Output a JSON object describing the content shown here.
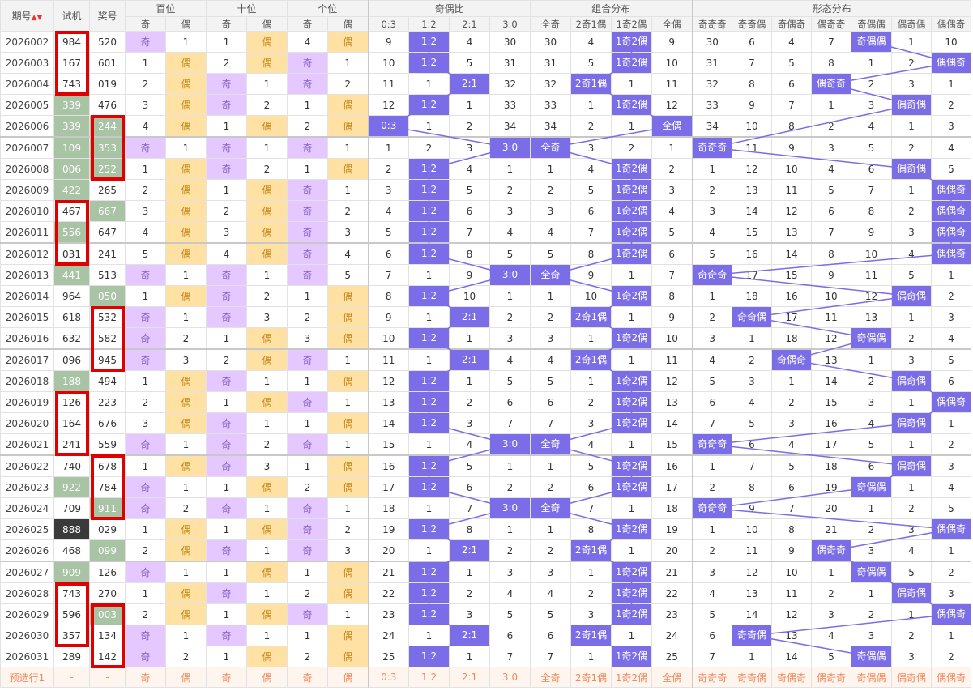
{
  "header": {
    "issue": "期号",
    "sort_icon": "sort-icon",
    "trial": "试机",
    "prize": "奖号",
    "groups": [
      "百位",
      "十位",
      "个位",
      "奇偶比",
      "组合分布",
      "形态分布"
    ],
    "sub_bai": [
      "奇",
      "偶"
    ],
    "sub_shi": [
      "奇",
      "偶"
    ],
    "sub_ge": [
      "奇",
      "偶"
    ],
    "sub_ratio": [
      "0:3",
      "1:2",
      "2:1",
      "3:0"
    ],
    "sub_combo": [
      "全奇",
      "2奇1偶",
      "1奇2偶",
      "全偶"
    ],
    "sub_shape": [
      "奇奇奇",
      "奇奇偶",
      "奇偶奇",
      "偶奇奇",
      "奇偶偶",
      "偶奇偶",
      "偶偶奇"
    ]
  },
  "rows": [
    {
      "issue": "2026002",
      "trial": "984",
      "prize": "520",
      "bai": [
        "奇",
        "1"
      ],
      "shi": [
        "1",
        "偶"
      ],
      "ge": [
        "4",
        "偶"
      ],
      "ratio": [
        "9",
        "1:2",
        "4",
        "30"
      ],
      "combo": [
        "30",
        "4",
        "1奇2偶",
        "9"
      ],
      "shape": [
        "30",
        "6",
        "4",
        "7",
        "奇偶偶",
        "1",
        "10"
      ]
    },
    {
      "issue": "2026003",
      "trial": "167",
      "prize": "601",
      "bai": [
        "1",
        "偶"
      ],
      "shi": [
        "2",
        "偶"
      ],
      "ge": [
        "奇",
        "1"
      ],
      "ratio": [
        "10",
        "1:2",
        "5",
        "31"
      ],
      "combo": [
        "31",
        "5",
        "1奇2偶",
        "10"
      ],
      "shape": [
        "31",
        "7",
        "5",
        "8",
        "1",
        "2",
        "偶偶奇"
      ]
    },
    {
      "issue": "2026004",
      "trial": "743",
      "prize": "019",
      "bai": [
        "2",
        "偶"
      ],
      "shi": [
        "奇",
        "1"
      ],
      "ge": [
        "奇",
        "2"
      ],
      "ratio": [
        "11",
        "1",
        "2:1",
        "32"
      ],
      "combo": [
        "32",
        "2奇1偶",
        "1",
        "11"
      ],
      "shape": [
        "32",
        "8",
        "6",
        "偶奇奇",
        "2",
        "3",
        "1"
      ]
    },
    {
      "issue": "2026005",
      "trial": "339",
      "prize": "476",
      "bai": [
        "3",
        "偶"
      ],
      "shi": [
        "奇",
        "2"
      ],
      "ge": [
        "1",
        "偶"
      ],
      "ratio": [
        "12",
        "1:2",
        "1",
        "33"
      ],
      "combo": [
        "33",
        "1",
        "1奇2偶",
        "12"
      ],
      "shape": [
        "33",
        "9",
        "7",
        "1",
        "3",
        "偶奇偶",
        "2"
      ]
    },
    {
      "issue": "2026006",
      "trial": "339",
      "prize": "244",
      "bai": [
        "4",
        "偶"
      ],
      "shi": [
        "1",
        "偶"
      ],
      "ge": [
        "2",
        "偶"
      ],
      "ratio": [
        "0:3",
        "1",
        "2",
        "34"
      ],
      "combo": [
        "34",
        "2",
        "1",
        "全偶"
      ],
      "shape": [
        "34",
        "10",
        "8",
        "2",
        "4",
        "1",
        "3"
      ]
    },
    {
      "issue": "2026007",
      "trial": "109",
      "prize": "353",
      "bai": [
        "奇",
        "1"
      ],
      "shi": [
        "奇",
        "1"
      ],
      "ge": [
        "奇",
        "1"
      ],
      "ratio": [
        "1",
        "2",
        "3",
        "3:0"
      ],
      "combo": [
        "全奇",
        "3",
        "2",
        "1"
      ],
      "shape": [
        "奇奇奇",
        "11",
        "9",
        "3",
        "5",
        "2",
        "4"
      ]
    },
    {
      "issue": "2026008",
      "trial": "006",
      "prize": "252",
      "bai": [
        "1",
        "偶"
      ],
      "shi": [
        "奇",
        "2"
      ],
      "ge": [
        "1",
        "偶"
      ],
      "ratio": [
        "2",
        "1:2",
        "4",
        "1"
      ],
      "combo": [
        "1",
        "4",
        "1奇2偶",
        "2"
      ],
      "shape": [
        "1",
        "12",
        "10",
        "4",
        "6",
        "偶奇偶",
        "5"
      ]
    },
    {
      "issue": "2026009",
      "trial": "422",
      "prize": "265",
      "bai": [
        "2",
        "偶"
      ],
      "shi": [
        "1",
        "偶"
      ],
      "ge": [
        "奇",
        "1"
      ],
      "ratio": [
        "3",
        "1:2",
        "5",
        "2"
      ],
      "combo": [
        "2",
        "5",
        "1奇2偶",
        "3"
      ],
      "shape": [
        "2",
        "13",
        "11",
        "5",
        "7",
        "1",
        "偶偶奇"
      ]
    },
    {
      "issue": "2026010",
      "trial": "467",
      "prize": "667",
      "bai": [
        "3",
        "偶"
      ],
      "shi": [
        "2",
        "偶"
      ],
      "ge": [
        "奇",
        "2"
      ],
      "ratio": [
        "4",
        "1:2",
        "6",
        "3"
      ],
      "combo": [
        "3",
        "6",
        "1奇2偶",
        "4"
      ],
      "shape": [
        "3",
        "14",
        "12",
        "6",
        "8",
        "2",
        "偶偶奇"
      ]
    },
    {
      "issue": "2026011",
      "trial": "556",
      "prize": "647",
      "bai": [
        "4",
        "偶"
      ],
      "shi": [
        "3",
        "偶"
      ],
      "ge": [
        "奇",
        "3"
      ],
      "ratio": [
        "5",
        "1:2",
        "7",
        "4"
      ],
      "combo": [
        "4",
        "7",
        "1奇2偶",
        "5"
      ],
      "shape": [
        "4",
        "15",
        "13",
        "7",
        "9",
        "3",
        "偶偶奇"
      ]
    },
    {
      "issue": "2026012",
      "trial": "031",
      "prize": "241",
      "bai": [
        "5",
        "偶"
      ],
      "shi": [
        "4",
        "偶"
      ],
      "ge": [
        "奇",
        "4"
      ],
      "ratio": [
        "6",
        "1:2",
        "8",
        "5"
      ],
      "combo": [
        "5",
        "8",
        "1奇2偶",
        "6"
      ],
      "shape": [
        "5",
        "16",
        "14",
        "8",
        "10",
        "4",
        "偶偶奇"
      ]
    },
    {
      "issue": "2026013",
      "trial": "441",
      "prize": "513",
      "bai": [
        "奇",
        "1"
      ],
      "shi": [
        "奇",
        "1"
      ],
      "ge": [
        "奇",
        "5"
      ],
      "ratio": [
        "7",
        "1",
        "9",
        "3:0"
      ],
      "combo": [
        "全奇",
        "9",
        "1",
        "7"
      ],
      "shape": [
        "奇奇奇",
        "17",
        "15",
        "9",
        "11",
        "5",
        "1"
      ]
    },
    {
      "issue": "2026014",
      "trial": "964",
      "prize": "050",
      "bai": [
        "1",
        "偶"
      ],
      "shi": [
        "奇",
        "2"
      ],
      "ge": [
        "1",
        "偶"
      ],
      "ratio": [
        "8",
        "1:2",
        "10",
        "1"
      ],
      "combo": [
        "1",
        "10",
        "1奇2偶",
        "8"
      ],
      "shape": [
        "1",
        "18",
        "16",
        "10",
        "12",
        "偶奇偶",
        "2"
      ]
    },
    {
      "issue": "2026015",
      "trial": "618",
      "prize": "532",
      "bai": [
        "奇",
        "1"
      ],
      "shi": [
        "奇",
        "3"
      ],
      "ge": [
        "2",
        "偶"
      ],
      "ratio": [
        "9",
        "1",
        "2:1",
        "2"
      ],
      "combo": [
        "2",
        "2奇1偶",
        "1",
        "9"
      ],
      "shape": [
        "2",
        "奇奇偶",
        "17",
        "11",
        "13",
        "1",
        "3"
      ]
    },
    {
      "issue": "2026016",
      "trial": "632",
      "prize": "582",
      "bai": [
        "奇",
        "2"
      ],
      "shi": [
        "1",
        "偶"
      ],
      "ge": [
        "3",
        "偶"
      ],
      "ratio": [
        "10",
        "1:2",
        "1",
        "3"
      ],
      "combo": [
        "3",
        "1",
        "1奇2偶",
        "10"
      ],
      "shape": [
        "3",
        "1",
        "18",
        "12",
        "奇偶偶",
        "2",
        "4"
      ]
    },
    {
      "issue": "2026017",
      "trial": "096",
      "prize": "945",
      "bai": [
        "奇",
        "3"
      ],
      "shi": [
        "2",
        "偶"
      ],
      "ge": [
        "奇",
        "1"
      ],
      "ratio": [
        "11",
        "1",
        "2:1",
        "4"
      ],
      "combo": [
        "4",
        "2奇1偶",
        "1",
        "11"
      ],
      "shape": [
        "4",
        "2",
        "奇偶奇",
        "13",
        "1",
        "3",
        "5"
      ]
    },
    {
      "issue": "2026018",
      "trial": "188",
      "prize": "494",
      "bai": [
        "1",
        "偶"
      ],
      "shi": [
        "奇",
        "1"
      ],
      "ge": [
        "1",
        "偶"
      ],
      "ratio": [
        "12",
        "1:2",
        "1",
        "5"
      ],
      "combo": [
        "5",
        "1",
        "1奇2偶",
        "12"
      ],
      "shape": [
        "5",
        "3",
        "1",
        "14",
        "2",
        "偶奇偶",
        "6"
      ]
    },
    {
      "issue": "2026019",
      "trial": "126",
      "prize": "223",
      "bai": [
        "2",
        "偶"
      ],
      "shi": [
        "1",
        "偶"
      ],
      "ge": [
        "奇",
        "1"
      ],
      "ratio": [
        "13",
        "1:2",
        "2",
        "6"
      ],
      "combo": [
        "6",
        "2",
        "1奇2偶",
        "13"
      ],
      "shape": [
        "6",
        "4",
        "2",
        "15",
        "3",
        "1",
        "偶偶奇"
      ]
    },
    {
      "issue": "2026020",
      "trial": "164",
      "prize": "676",
      "bai": [
        "3",
        "偶"
      ],
      "shi": [
        "奇",
        "1"
      ],
      "ge": [
        "1",
        "偶"
      ],
      "ratio": [
        "14",
        "1:2",
        "3",
        "7"
      ],
      "combo": [
        "7",
        "3",
        "1奇2偶",
        "14"
      ],
      "shape": [
        "7",
        "5",
        "3",
        "16",
        "4",
        "偶奇偶",
        "1"
      ]
    },
    {
      "issue": "2026021",
      "trial": "241",
      "prize": "559",
      "bai": [
        "奇",
        "1"
      ],
      "shi": [
        "奇",
        "2"
      ],
      "ge": [
        "奇",
        "1"
      ],
      "ratio": [
        "15",
        "1",
        "4",
        "3:0"
      ],
      "combo": [
        "全奇",
        "4",
        "1",
        "15"
      ],
      "shape": [
        "奇奇奇",
        "6",
        "4",
        "17",
        "5",
        "1",
        "2"
      ]
    },
    {
      "issue": "2026022",
      "trial": "740",
      "prize": "678",
      "bai": [
        "1",
        "偶"
      ],
      "shi": [
        "奇",
        "3"
      ],
      "ge": [
        "1",
        "偶"
      ],
      "ratio": [
        "16",
        "1:2",
        "5",
        "1"
      ],
      "combo": [
        "1",
        "5",
        "1奇2偶",
        "16"
      ],
      "shape": [
        "1",
        "7",
        "5",
        "18",
        "6",
        "偶奇偶",
        "3"
      ]
    },
    {
      "issue": "2026023",
      "trial": "922",
      "prize": "784",
      "bai": [
        "奇",
        "1"
      ],
      "shi": [
        "1",
        "偶"
      ],
      "ge": [
        "2",
        "偶"
      ],
      "ratio": [
        "17",
        "1:2",
        "6",
        "2"
      ],
      "combo": [
        "2",
        "6",
        "1奇2偶",
        "17"
      ],
      "shape": [
        "2",
        "8",
        "6",
        "19",
        "奇偶偶",
        "1",
        "4"
      ]
    },
    {
      "issue": "2026024",
      "trial": "709",
      "prize": "911",
      "bai": [
        "奇",
        "2"
      ],
      "shi": [
        "奇",
        "1"
      ],
      "ge": [
        "奇",
        "1"
      ],
      "ratio": [
        "18",
        "1",
        "7",
        "3:0"
      ],
      "combo": [
        "全奇",
        "7",
        "1",
        "18"
      ],
      "shape": [
        "奇奇奇",
        "9",
        "7",
        "20",
        "1",
        "2",
        "5"
      ]
    },
    {
      "issue": "2026025",
      "trial": "888",
      "prize": "029",
      "bai": [
        "1",
        "偶"
      ],
      "shi": [
        "1",
        "偶"
      ],
      "ge": [
        "奇",
        "2"
      ],
      "ratio": [
        "19",
        "1:2",
        "8",
        "1"
      ],
      "combo": [
        "1",
        "8",
        "1奇2偶",
        "19"
      ],
      "shape": [
        "1",
        "10",
        "8",
        "21",
        "2",
        "3",
        "偶偶奇"
      ]
    },
    {
      "issue": "2026026",
      "trial": "468",
      "prize": "099",
      "bai": [
        "2",
        "偶"
      ],
      "shi": [
        "奇",
        "1"
      ],
      "ge": [
        "奇",
        "3"
      ],
      "ratio": [
        "20",
        "1",
        "2:1",
        "2"
      ],
      "combo": [
        "2",
        "2奇1偶",
        "1",
        "20"
      ],
      "shape": [
        "2",
        "11",
        "9",
        "偶奇奇",
        "3",
        "4",
        "1"
      ]
    },
    {
      "issue": "2026027",
      "trial": "909",
      "prize": "126",
      "bai": [
        "奇",
        "1"
      ],
      "shi": [
        "1",
        "偶"
      ],
      "ge": [
        "1",
        "偶"
      ],
      "ratio": [
        "21",
        "1:2",
        "1",
        "3"
      ],
      "combo": [
        "3",
        "1",
        "1奇2偶",
        "21"
      ],
      "shape": [
        "3",
        "12",
        "10",
        "1",
        "奇偶偶",
        "5",
        "2"
      ]
    },
    {
      "issue": "2026028",
      "trial": "743",
      "prize": "270",
      "bai": [
        "1",
        "偶"
      ],
      "shi": [
        "奇",
        "1"
      ],
      "ge": [
        "2",
        "偶"
      ],
      "ratio": [
        "22",
        "1:2",
        "2",
        "4"
      ],
      "combo": [
        "4",
        "2",
        "1奇2偶",
        "22"
      ],
      "shape": [
        "4",
        "13",
        "11",
        "2",
        "1",
        "偶奇偶",
        "3"
      ]
    },
    {
      "issue": "2026029",
      "trial": "596",
      "prize": "003",
      "bai": [
        "2",
        "偶"
      ],
      "shi": [
        "1",
        "偶"
      ],
      "ge": [
        "奇",
        "1"
      ],
      "ratio": [
        "23",
        "1:2",
        "3",
        "5"
      ],
      "combo": [
        "5",
        "3",
        "1奇2偶",
        "23"
      ],
      "shape": [
        "5",
        "14",
        "12",
        "3",
        "2",
        "1",
        "偶偶奇"
      ]
    },
    {
      "issue": "2026030",
      "trial": "357",
      "prize": "134",
      "bai": [
        "奇",
        "1"
      ],
      "shi": [
        "奇",
        "1"
      ],
      "ge": [
        "1",
        "偶"
      ],
      "ratio": [
        "24",
        "1",
        "2:1",
        "6"
      ],
      "combo": [
        "6",
        "2奇1偶",
        "1",
        "24"
      ],
      "shape": [
        "6",
        "奇奇偶",
        "13",
        "4",
        "3",
        "2",
        "1"
      ]
    },
    {
      "issue": "2026031",
      "trial": "289",
      "prize": "142",
      "bai": [
        "奇",
        "2"
      ],
      "shi": [
        "1",
        "偶"
      ],
      "ge": [
        "2",
        "偶"
      ],
      "ratio": [
        "25",
        "1:2",
        "1",
        "7"
      ],
      "combo": [
        "7",
        "1",
        "1奇2偶",
        "25"
      ],
      "shape": [
        "7",
        "1",
        "14",
        "5",
        "奇偶偶",
        "3",
        "2"
      ]
    }
  ],
  "trial_green": [
    "2026005",
    "2026006",
    "2026007",
    "2026008",
    "2026009",
    "2026011",
    "2026013",
    "2026018",
    "2026023",
    "2026027"
  ],
  "trial_dark": [
    "2026025"
  ],
  "prize_green": [
    "2026006",
    "2026007",
    "2026008",
    "2026010",
    "2026014",
    "2026024",
    "2026026",
    "2026029"
  ],
  "footer": {
    "label": "预选行1",
    "dash1": "-",
    "dash2": "-",
    "cells": [
      "奇",
      "偶",
      "奇",
      "偶",
      "奇",
      "偶",
      "0:3",
      "1:2",
      "2:1",
      "3:0",
      "全奇",
      "2奇1偶",
      "1奇2偶",
      "全偶",
      "奇奇奇",
      "奇奇偶",
      "奇偶奇",
      "偶奇奇",
      "奇偶偶",
      "偶奇偶",
      "偶偶奇"
    ]
  },
  "colors": {
    "accent": "#7b6ce8",
    "odd_bg": "#e4c8ff",
    "even_bg": "#ffe1a3",
    "green": "#a9c4a5",
    "red_box": "#e00000",
    "line": "#7b6ce8"
  },
  "red_boxes": [
    {
      "col": "trial",
      "from": "2026002",
      "to": "2026004"
    },
    {
      "col": "prize",
      "from": "2026006",
      "to": "2026008"
    },
    {
      "col": "trial",
      "from": "2026010",
      "to": "2026012"
    },
    {
      "col": "prize",
      "from": "2026015",
      "to": "2026017"
    },
    {
      "col": "trial",
      "from": "2026019",
      "to": "2026021"
    },
    {
      "col": "prize",
      "from": "2026022",
      "to": "2026024"
    },
    {
      "col": "trial",
      "from": "2026028",
      "to": "2026030"
    },
    {
      "col": "prize",
      "from": "2026029",
      "to": "2026031"
    }
  ]
}
